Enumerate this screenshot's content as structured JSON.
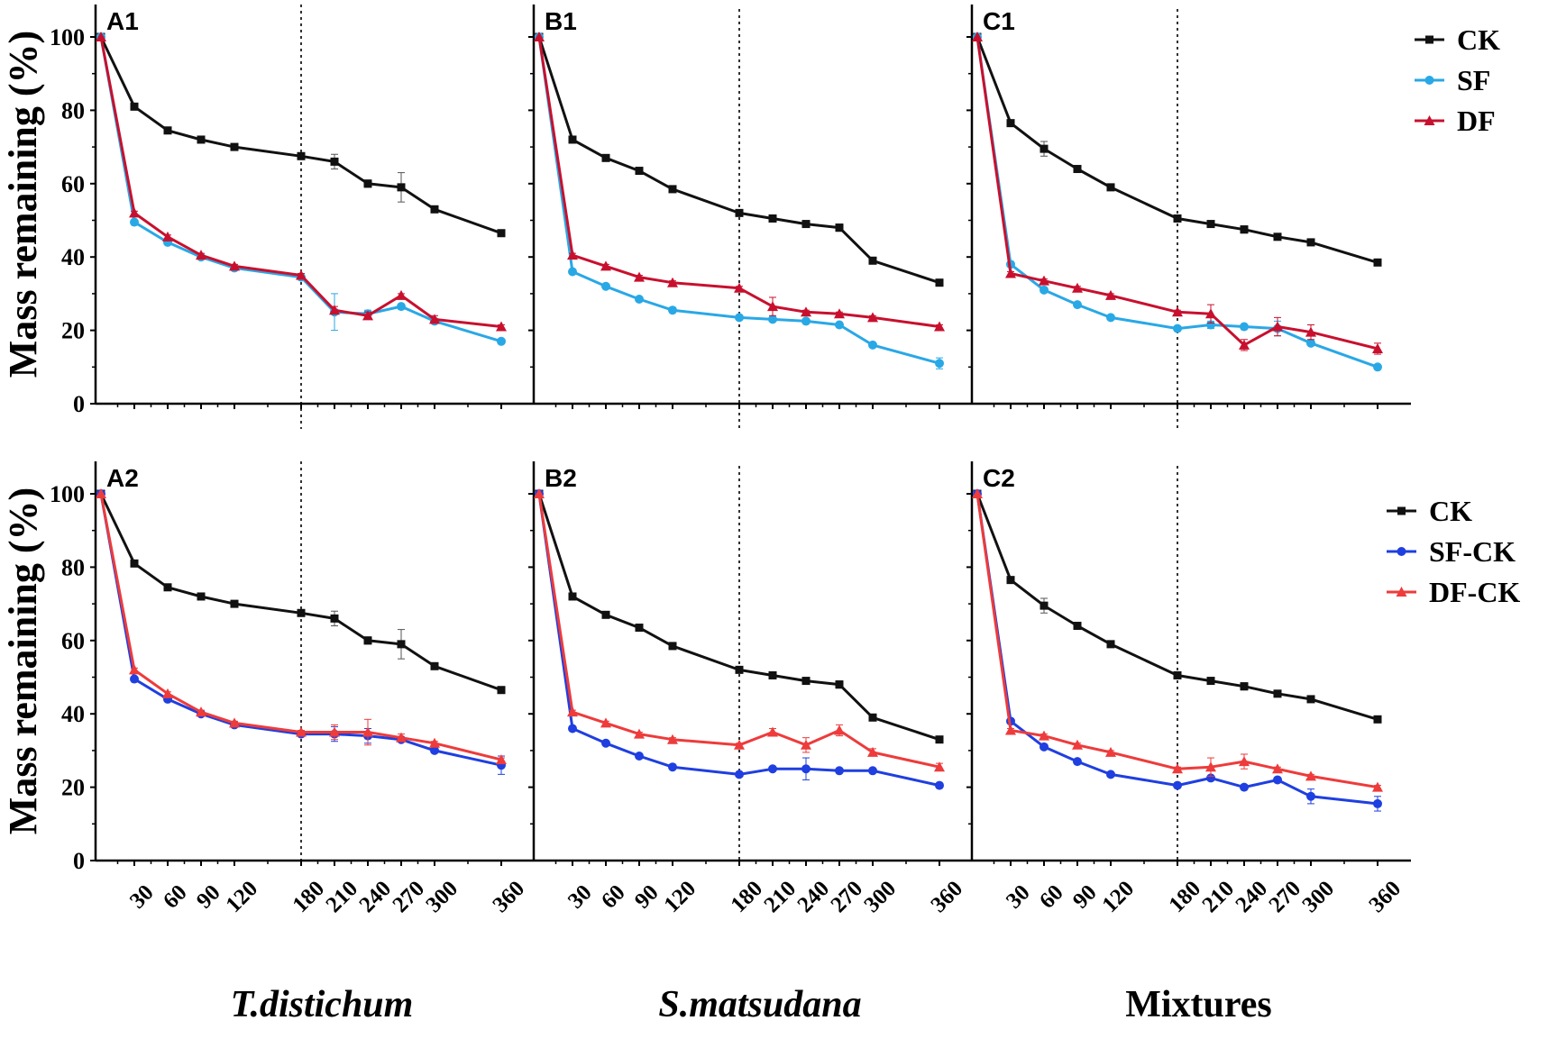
{
  "chart_data": [
    {
      "id": "A1",
      "panel_label": "A1",
      "type": "line",
      "x": [
        0,
        30,
        60,
        90,
        120,
        180,
        210,
        240,
        270,
        300,
        360
      ],
      "ylim": [
        0,
        110
      ],
      "yticks": [
        "0",
        "20",
        "40",
        "60",
        "80",
        "100"
      ],
      "ylabel": "Mass remaining (%)",
      "divider_x": 180,
      "series": [
        {
          "name": "CK",
          "color": "#111111",
          "marker": "square",
          "values": [
            100,
            81,
            74.5,
            72,
            70,
            67.5,
            66,
            60,
            59,
            53,
            46.5
          ],
          "errors": [
            0,
            0.5,
            0.5,
            0.5,
            0.5,
            0.5,
            2,
            1,
            4,
            0.5,
            0.5
          ]
        },
        {
          "name": "SF",
          "color": "#29a8e6",
          "marker": "circle",
          "values": [
            100,
            49.5,
            44,
            40,
            37,
            34.5,
            25,
            24.5,
            26.5,
            22.5,
            17
          ],
          "errors": [
            0,
            0.5,
            0.5,
            0.5,
            0.5,
            0.5,
            5,
            1,
            0.5,
            0.5,
            0.5
          ]
        },
        {
          "name": "DF",
          "color": "#c8102e",
          "marker": "triangle",
          "values": [
            100,
            52,
            45.5,
            40.5,
            37.5,
            35,
            25.5,
            24,
            29.5,
            23,
            21
          ],
          "errors": [
            0,
            0.5,
            0.5,
            0.5,
            0.5,
            0.5,
            1,
            1,
            0.5,
            1,
            0.5
          ]
        }
      ]
    },
    {
      "id": "B1",
      "panel_label": "B1",
      "type": "line",
      "x": [
        0,
        30,
        60,
        90,
        120,
        180,
        210,
        240,
        270,
        300,
        360
      ],
      "ylim": [
        0,
        110
      ],
      "divider_x": 180,
      "series": [
        {
          "name": "CK",
          "color": "#111111",
          "marker": "square",
          "values": [
            100,
            72,
            67,
            63.5,
            58.5,
            52,
            50.5,
            49,
            48,
            39,
            33
          ],
          "errors": [
            0,
            0.5,
            0.5,
            0.5,
            0.5,
            0.5,
            0.5,
            0.5,
            1,
            0.5,
            0.5
          ]
        },
        {
          "name": "SF",
          "color": "#29a8e6",
          "marker": "circle",
          "values": [
            100,
            36,
            32,
            28.5,
            25.5,
            23.5,
            23,
            22.5,
            21.5,
            16,
            11
          ],
          "errors": [
            0,
            0.5,
            0.5,
            0.5,
            0.5,
            0.5,
            0.5,
            0.5,
            0.5,
            0.5,
            1.5
          ]
        },
        {
          "name": "DF",
          "color": "#c8102e",
          "marker": "triangle",
          "values": [
            100,
            40.5,
            37.5,
            34.5,
            33,
            31.5,
            26.5,
            25,
            24.5,
            23.5,
            21
          ],
          "errors": [
            0,
            0.5,
            0.5,
            0.5,
            0.5,
            0.5,
            2.5,
            0.5,
            0.5,
            0.5,
            0.5
          ]
        }
      ]
    },
    {
      "id": "C1",
      "panel_label": "C1",
      "type": "line",
      "x": [
        0,
        30,
        60,
        90,
        120,
        180,
        210,
        240,
        270,
        300,
        360
      ],
      "ylim": [
        0,
        110
      ],
      "divider_x": 180,
      "legend": {
        "placement": "top-right",
        "entries": [
          "CK",
          "SF",
          "DF"
        ]
      },
      "series": [
        {
          "name": "CK",
          "color": "#111111",
          "marker": "square",
          "values": [
            100,
            76.5,
            69.5,
            64,
            59,
            50.5,
            49,
            47.5,
            45.5,
            44,
            38.5
          ],
          "errors": [
            0,
            0.5,
            2,
            0.5,
            0.5,
            0.5,
            0.5,
            1,
            0.5,
            0.5,
            0.5
          ]
        },
        {
          "name": "SF",
          "color": "#29a8e6",
          "marker": "circle",
          "values": [
            100,
            38,
            31,
            27,
            23.5,
            20.5,
            21.5,
            21,
            20.5,
            16.5,
            10
          ],
          "errors": [
            0,
            0.5,
            0.5,
            0.5,
            0.5,
            0.5,
            1,
            0.5,
            2,
            0.5,
            0.5
          ]
        },
        {
          "name": "DF",
          "color": "#c8102e",
          "marker": "triangle",
          "values": [
            100,
            35.5,
            33.5,
            31.5,
            29.5,
            25,
            24.5,
            16,
            21,
            19.5,
            15
          ],
          "errors": [
            0,
            0.5,
            0.5,
            0.5,
            0.5,
            0.5,
            2.5,
            1.5,
            2.5,
            2,
            1.5
          ]
        }
      ]
    },
    {
      "id": "A2",
      "panel_label": "A2",
      "type": "line",
      "x": [
        0,
        30,
        60,
        90,
        120,
        180,
        210,
        240,
        270,
        300,
        360
      ],
      "ylim": [
        0,
        110
      ],
      "yticks": [
        "0",
        "20",
        "40",
        "60",
        "80",
        "100"
      ],
      "ylabel": "Mass remaining (%)",
      "xticks": [
        "30",
        "60",
        "90",
        "120",
        "180",
        "210",
        "240",
        "270",
        "300",
        "360"
      ],
      "xlabel": "T.distichum",
      "divider_x": 180,
      "series": [
        {
          "name": "CK",
          "color": "#111111",
          "marker": "square",
          "values": [
            100,
            81,
            74.5,
            72,
            70,
            67.5,
            66,
            60,
            59,
            53,
            46.5
          ],
          "errors": [
            0,
            0.5,
            0.5,
            0.5,
            0.5,
            0.5,
            2,
            1,
            4,
            0.5,
            0.5
          ]
        },
        {
          "name": "SF-CK",
          "color": "#1f3fe0",
          "marker": "circle",
          "values": [
            100,
            49.5,
            44,
            40,
            37,
            34.5,
            34.5,
            34,
            33,
            30,
            26
          ],
          "errors": [
            0,
            0.5,
            0.5,
            0.5,
            0.5,
            0.5,
            2,
            2,
            0.5,
            0.5,
            2.5
          ]
        },
        {
          "name": "DF-CK",
          "color": "#ee3b3b",
          "marker": "triangle",
          "values": [
            100,
            52,
            45.5,
            40.5,
            37.5,
            35,
            35,
            35,
            33.5,
            32,
            27.5
          ],
          "errors": [
            0,
            0.5,
            0.5,
            0.5,
            0.5,
            0.5,
            2,
            3.5,
            1,
            0.5,
            0.5
          ]
        }
      ]
    },
    {
      "id": "B2",
      "panel_label": "B2",
      "type": "line",
      "x": [
        0,
        30,
        60,
        90,
        120,
        180,
        210,
        240,
        270,
        300,
        360
      ],
      "ylim": [
        0,
        110
      ],
      "xticks": [
        "30",
        "60",
        "90",
        "120",
        "180",
        "210",
        "240",
        "270",
        "300",
        "360"
      ],
      "xlabel": "S.matsudana",
      "divider_x": 180,
      "series": [
        {
          "name": "CK",
          "color": "#111111",
          "marker": "square",
          "values": [
            100,
            72,
            67,
            63.5,
            58.5,
            52,
            50.5,
            49,
            48,
            39,
            33
          ],
          "errors": [
            0,
            0.5,
            0.5,
            0.5,
            0.5,
            0.5,
            0.5,
            0.5,
            1,
            0.5,
            0.5
          ]
        },
        {
          "name": "SF-CK",
          "color": "#1f3fe0",
          "marker": "circle",
          "values": [
            100,
            36,
            32,
            28.5,
            25.5,
            23.5,
            25,
            25,
            24.5,
            24.5,
            20.5
          ],
          "errors": [
            0,
            0.5,
            0.5,
            0.5,
            0.5,
            0.5,
            0.5,
            3,
            0.5,
            0.5,
            0.5
          ]
        },
        {
          "name": "DF-CK",
          "color": "#ee3b3b",
          "marker": "triangle",
          "values": [
            100,
            40.5,
            37.5,
            34.5,
            33,
            31.5,
            35,
            31.5,
            35.5,
            29.5,
            25.5
          ],
          "errors": [
            0,
            0.5,
            0.5,
            0.5,
            0.5,
            0.5,
            1,
            2,
            1.5,
            1,
            1
          ]
        }
      ]
    },
    {
      "id": "C2",
      "panel_label": "C2",
      "type": "line",
      "x": [
        0,
        30,
        60,
        90,
        120,
        180,
        210,
        240,
        270,
        300,
        360
      ],
      "ylim": [
        0,
        110
      ],
      "xticks": [
        "30",
        "60",
        "90",
        "120",
        "180",
        "210",
        "240",
        "270",
        "300",
        "360"
      ],
      "xlabel": "Mixtures",
      "divider_x": 180,
      "legend": {
        "placement": "top-right",
        "entries": [
          "CK",
          "SF-CK",
          "DF-CK"
        ]
      },
      "series": [
        {
          "name": "CK",
          "color": "#111111",
          "marker": "square",
          "values": [
            100,
            76.5,
            69.5,
            64,
            59,
            50.5,
            49,
            47.5,
            45.5,
            44,
            38.5
          ],
          "errors": [
            0,
            0.5,
            2,
            0.5,
            0.5,
            0.5,
            0.5,
            1,
            0.5,
            0.5,
            0.5
          ]
        },
        {
          "name": "SF-CK",
          "color": "#1f3fe0",
          "marker": "circle",
          "values": [
            100,
            38,
            31,
            27,
            23.5,
            20.5,
            22.5,
            20,
            22,
            17.5,
            15.5
          ],
          "errors": [
            0,
            0.5,
            0.5,
            0.5,
            0.5,
            0.5,
            0.5,
            0.5,
            0.5,
            2,
            2
          ]
        },
        {
          "name": "DF-CK",
          "color": "#ee3b3b",
          "marker": "triangle",
          "values": [
            100,
            35.5,
            34,
            31.5,
            29.5,
            25,
            25.5,
            27,
            25,
            23,
            20
          ],
          "errors": [
            0,
            0.5,
            0.5,
            0.5,
            0.5,
            0.5,
            2.5,
            2,
            0.5,
            0.5,
            0.5
          ]
        }
      ]
    }
  ]
}
